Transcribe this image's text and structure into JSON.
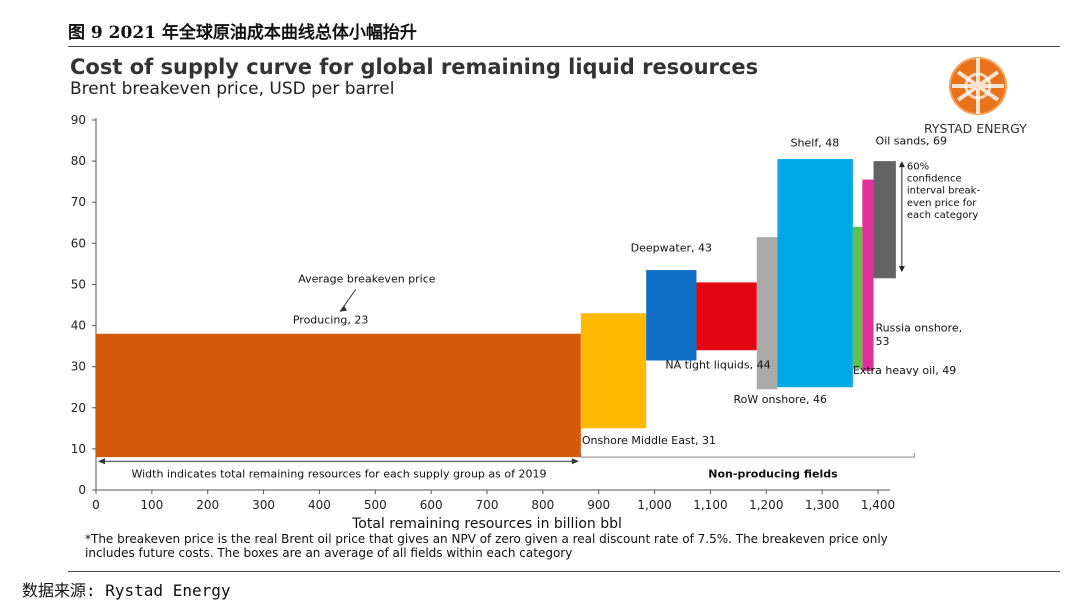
{
  "figure_caption": "图 9 2021 年全球原油成本曲线总体小幅抬升",
  "source": "数据来源: Rystad Energy",
  "logo": {
    "icon": "rystad-globe-icon",
    "text": "RYSTAD ENERGY"
  },
  "footnote_lines": [
    "*The breakeven price is the real Brent oil price that gives an NPV of zero given a real discount rate of 7.5%. The breakeven price only",
    "includes future costs. The boxes are an average of all fields within each category"
  ],
  "chart_data": {
    "type": "bar",
    "title": "Cost of supply curve for global remaining liquid resources",
    "subtitle": "Brent breakeven price, USD per barrel",
    "xlabel": "Total remaining resources in billion bbl",
    "ylabel": "",
    "xlim": [
      0,
      1400
    ],
    "ylim": [
      0,
      90
    ],
    "xticks": [
      0,
      100,
      200,
      300,
      400,
      500,
      600,
      700,
      800,
      900,
      1000,
      1100,
      1200,
      1300,
      1400
    ],
    "xtick_labels": [
      "0",
      "100",
      "200",
      "300",
      "400",
      "500",
      "600",
      "700",
      "800",
      "900",
      "1,000",
      "1,100",
      "1,200",
      "1,300",
      "1,400"
    ],
    "yticks": [
      0,
      10,
      20,
      30,
      40,
      50,
      60,
      70,
      80,
      90
    ],
    "grid": false,
    "boxes": [
      {
        "label": "Producing, 23",
        "x0": 0,
        "x1": 868,
        "low": 8,
        "high": 38,
        "color": "#d55a07"
      },
      {
        "label": "Onshore Middle East, 31",
        "x0": 868,
        "x1": 985,
        "low": 15,
        "high": 43,
        "color": "#ffba00"
      },
      {
        "label": "Deepwater, 43",
        "x0": 985,
        "x1": 1075,
        "low": 31.5,
        "high": 53.5,
        "color": "#0f6fc6"
      },
      {
        "label": "NA tight liquids, 44",
        "x0": 1075,
        "x1": 1183,
        "low": 34,
        "high": 50.5,
        "color": "#e30613"
      },
      {
        "label": "RoW onshore, 46",
        "x0": 1183,
        "x1": 1220,
        "low": 24.5,
        "high": 61.5,
        "color": "#aaaaaa"
      },
      {
        "label": "Shelf, 48",
        "x0": 1220,
        "x1": 1355,
        "low": 25,
        "high": 80.5,
        "color": "#00a9e6"
      },
      {
        "label": "Extra heavy oil, 49",
        "x0": 1355,
        "x1": 1372,
        "low": 29.5,
        "high": 64,
        "color": "#5cc24c"
      },
      {
        "label": "Russia onshore, 53",
        "x0": 1372,
        "x1": 1392,
        "low": 29,
        "high": 75.5,
        "color": "#e0309c"
      },
      {
        "label": "Oil sands, 69",
        "x0": 1392,
        "x1": 1432,
        "low": 51.5,
        "high": 80,
        "color": "#646464"
      }
    ],
    "annotations": {
      "average": "Average breakeven price",
      "width_note": "Width indicates total remaining resources for each supply group as of 2019",
      "non_producing": "Non-producing fields",
      "confidence": [
        "60%",
        "confidence",
        "interval break-",
        "even price for",
        "each category"
      ]
    }
  }
}
